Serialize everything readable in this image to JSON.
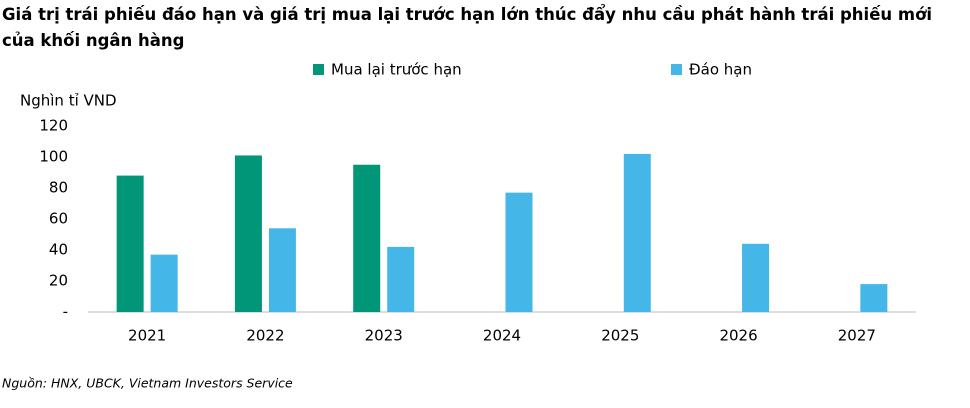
{
  "chart_data": {
    "type": "bar",
    "title": "Giá trị trái phiếu đáo hạn và giá trị mua lại trước hạn lớn thúc đẩy nhu cầu phát hành trái phiếu mới của khối ngân hàng",
    "y_label": "Nghìn tỉ VND",
    "source": "Nguồn: HNX, UBCK, Vietnam Investors Service",
    "categories": [
      "2021",
      "2022",
      "2023",
      "2024",
      "2025",
      "2026",
      "2027"
    ],
    "series": [
      {
        "name": "Mua lại trước hạn",
        "color": "#009677",
        "values": [
          88,
          101,
          95,
          null,
          null,
          null,
          null
        ]
      },
      {
        "name": "Đáo hạn",
        "color": "#45b6e8",
        "values": [
          37,
          54,
          42,
          77,
          102,
          44,
          18
        ]
      }
    ],
    "ylim": [
      0,
      120
    ],
    "yticks": [
      {
        "value": 0,
        "label": "-"
      },
      20,
      40,
      60,
      80,
      100,
      120
    ],
    "grid": false
  }
}
